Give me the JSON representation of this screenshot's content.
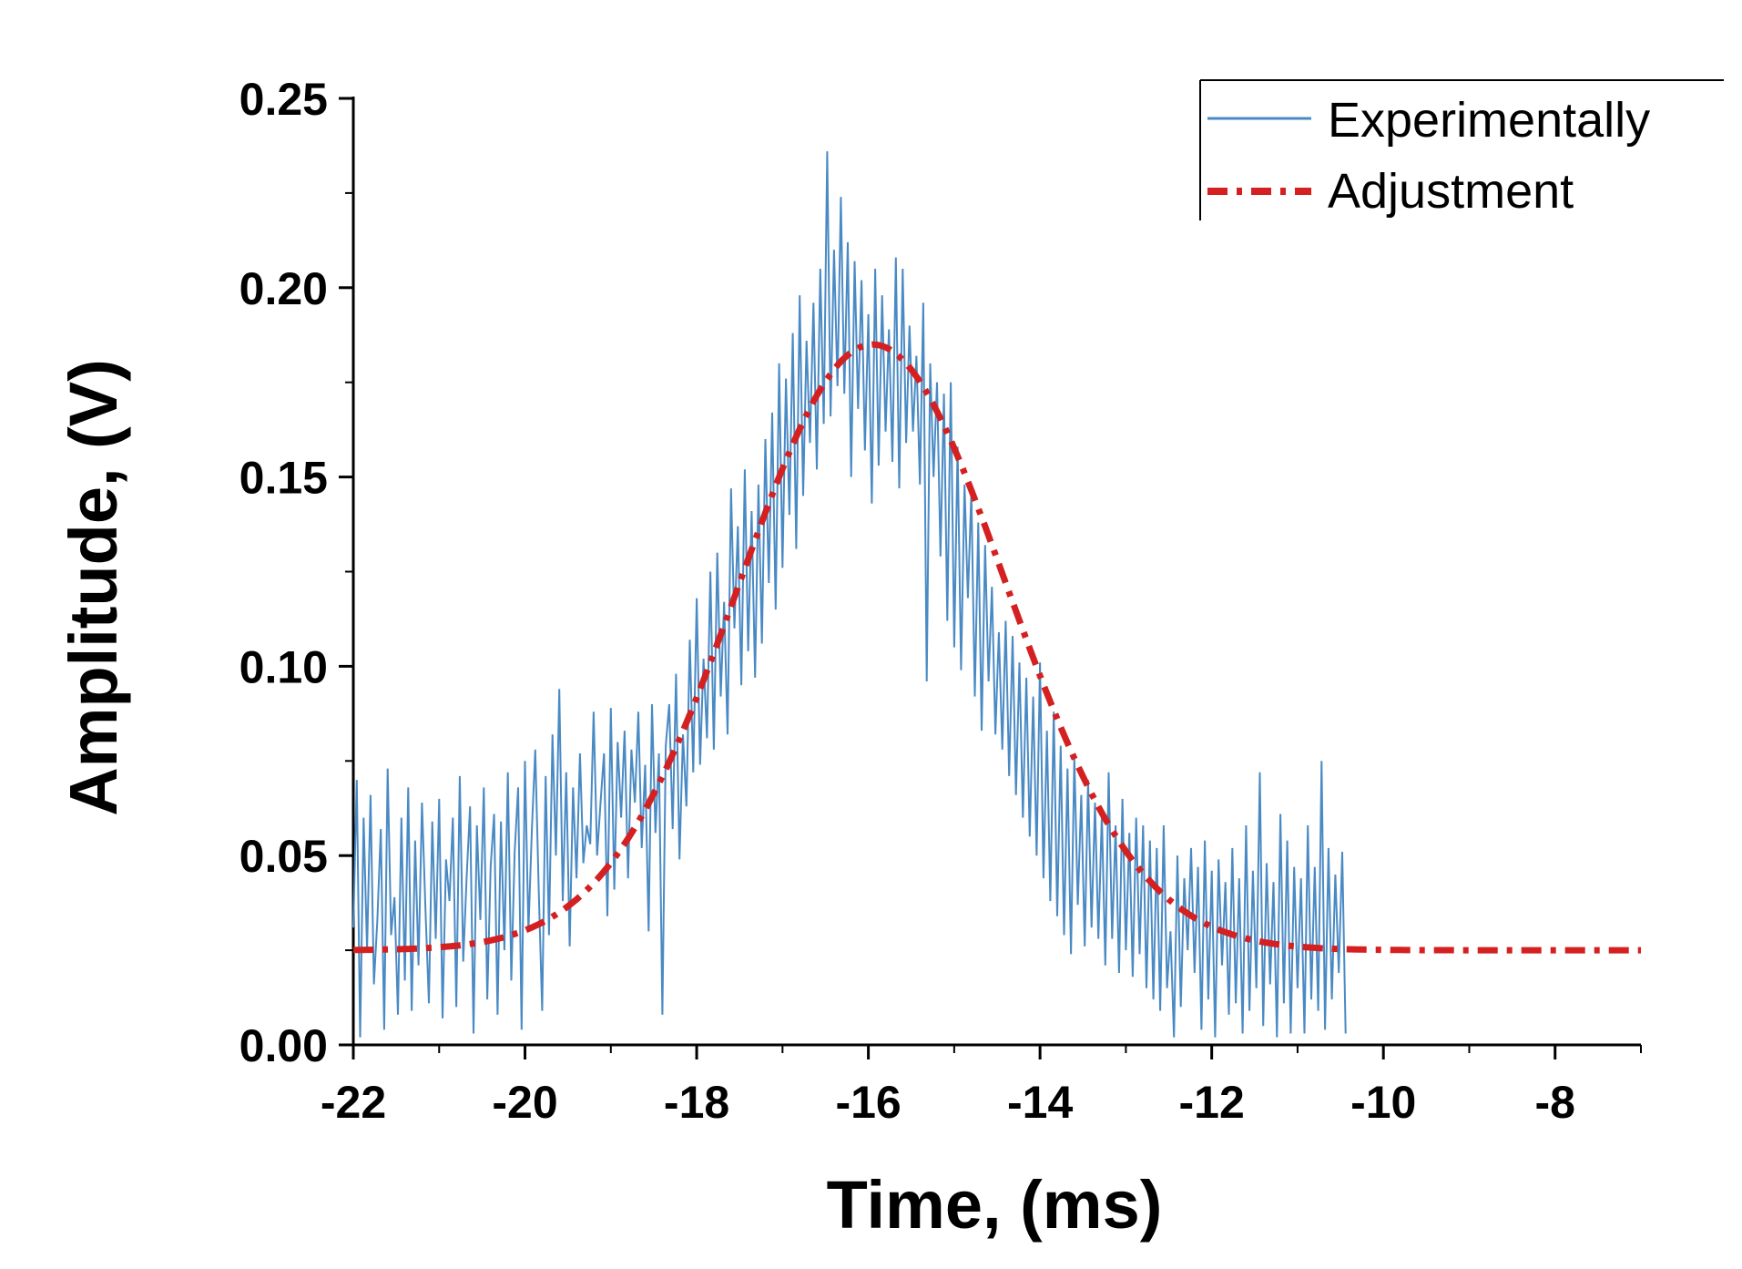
{
  "chart_data": {
    "type": "line",
    "title": "",
    "xlabel": "Time, (ms)",
    "ylabel": "Amplitude, (V)",
    "xlim": [
      -22,
      -7
    ],
    "ylim": [
      0,
      0.25
    ],
    "xticks": [
      -22,
      -20,
      -18,
      -16,
      -14,
      -12,
      -10,
      -8
    ],
    "xtick_labels": [
      "-22",
      "-20",
      "-18",
      "-16",
      "-14",
      "-12",
      "-10",
      "-8"
    ],
    "yticks": [
      0,
      0.05,
      0.1,
      0.15,
      0.2,
      0.25
    ],
    "ytick_labels": [
      "0.00",
      "0.05",
      "0.10",
      "0.15",
      "0.20",
      "0.25"
    ],
    "grid": false,
    "legend": {
      "position": "top-right",
      "entries": [
        "Experimentally",
        "Adjustment"
      ]
    },
    "series": [
      {
        "name": "Experimentally",
        "color": "#4a8ac4",
        "style": "solid",
        "x_start": -22,
        "x_step": 0.04,
        "values": [
          0.031,
          0.07,
          0.002,
          0.06,
          0.025,
          0.066,
          0.016,
          0.033,
          0.057,
          0.004,
          0.073,
          0.029,
          0.039,
          0.008,
          0.06,
          0.017,
          0.068,
          0.009,
          0.054,
          0.021,
          0.064,
          0.036,
          0.011,
          0.059,
          0.028,
          0.065,
          0.007,
          0.049,
          0.038,
          0.06,
          0.01,
          0.071,
          0.022,
          0.044,
          0.063,
          0.003,
          0.058,
          0.033,
          0.068,
          0.012,
          0.047,
          0.061,
          0.008,
          0.059,
          0.025,
          0.072,
          0.017,
          0.051,
          0.068,
          0.004,
          0.075,
          0.03,
          0.057,
          0.078,
          0.041,
          0.009,
          0.071,
          0.029,
          0.082,
          0.05,
          0.094,
          0.038,
          0.072,
          0.026,
          0.068,
          0.044,
          0.077,
          0.048,
          0.058,
          0.053,
          0.088,
          0.05,
          0.064,
          0.077,
          0.034,
          0.089,
          0.041,
          0.08,
          0.06,
          0.083,
          0.044,
          0.078,
          0.064,
          0.088,
          0.052,
          0.074,
          0.03,
          0.09,
          0.056,
          0.077,
          0.008,
          0.079,
          0.09,
          0.057,
          0.098,
          0.049,
          0.082,
          0.063,
          0.107,
          0.072,
          0.118,
          0.074,
          0.102,
          0.081,
          0.125,
          0.078,
          0.13,
          0.092,
          0.117,
          0.082,
          0.147,
          0.11,
          0.137,
          0.095,
          0.152,
          0.104,
          0.141,
          0.097,
          0.148,
          0.106,
          0.16,
          0.122,
          0.167,
          0.115,
          0.18,
          0.126,
          0.176,
          0.14,
          0.188,
          0.131,
          0.198,
          0.145,
          0.186,
          0.159,
          0.196,
          0.152,
          0.205,
          0.164,
          0.236,
          0.166,
          0.21,
          0.174,
          0.224,
          0.172,
          0.212,
          0.15,
          0.207,
          0.168,
          0.202,
          0.157,
          0.193,
          0.143,
          0.205,
          0.153,
          0.198,
          0.162,
          0.189,
          0.154,
          0.208,
          0.147,
          0.205,
          0.159,
          0.19,
          0.162,
          0.182,
          0.148,
          0.196,
          0.096,
          0.18,
          0.15,
          0.175,
          0.129,
          0.172,
          0.112,
          0.175,
          0.105,
          0.158,
          0.099,
          0.148,
          0.118,
          0.146,
          0.092,
          0.138,
          0.083,
          0.132,
          0.096,
          0.121,
          0.082,
          0.109,
          0.078,
          0.112,
          0.071,
          0.108,
          0.066,
          0.101,
          0.06,
          0.097,
          0.055,
          0.092,
          0.05,
          0.101,
          0.044,
          0.083,
          0.038,
          0.088,
          0.034,
          0.079,
          0.029,
          0.073,
          0.024,
          0.076,
          0.037,
          0.066,
          0.026,
          0.07,
          0.031,
          0.064,
          0.028,
          0.061,
          0.021,
          0.072,
          0.028,
          0.058,
          0.019,
          0.065,
          0.025,
          0.056,
          0.018,
          0.06,
          0.024,
          0.058,
          0.015,
          0.054,
          0.012,
          0.052,
          0.009,
          0.058,
          0.015,
          0.03,
          0.002,
          0.05,
          0.01,
          0.044,
          0.025,
          0.052,
          0.019,
          0.047,
          0.004,
          0.054,
          0.012,
          0.046,
          0.002,
          0.049,
          0.021,
          0.043,
          0.008,
          0.052,
          0.011,
          0.044,
          0.003,
          0.058,
          0.009,
          0.046,
          0.015,
          0.072,
          0.005,
          0.048,
          0.016,
          0.043,
          0.002,
          0.061,
          0.011,
          0.054,
          0.003,
          0.047,
          0.015,
          0.044,
          0.003,
          0.058,
          0.012,
          0.047,
          0.009,
          0.075,
          0.004,
          0.052,
          0.012,
          0.045,
          0.019,
          0.051,
          0.003
        ],
        "note": "Noisy measured signal; values digitized approximately from the figure"
      },
      {
        "name": "Adjustment",
        "color": "#d42020",
        "style": "dash-dot",
        "model": "gaussian",
        "baseline": 0.025,
        "amplitude": 0.16,
        "center": -15.95,
        "sigma": 1.55,
        "note": "Gaussian fit: y = baseline + amplitude * exp(-(x-center)^2 / (2*sigma^2)); peak ≈ 0.185 V at -16 ms"
      }
    ]
  }
}
